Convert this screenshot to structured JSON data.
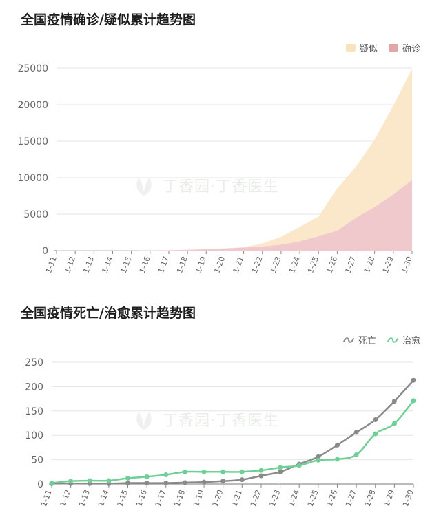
{
  "charts": [
    {
      "id": "panel1",
      "title": "全国疫情确诊/疑似累计趋势图",
      "watermark": "丁香园·丁香医生",
      "legend": [
        {
          "name": "疑似",
          "color": "#f9e3bd"
        },
        {
          "name": "确诊",
          "color": "#e3a6a6"
        }
      ]
    },
    {
      "id": "panel2",
      "title": "全国疫情死亡/治愈累计趋势图",
      "watermark": "丁香园·丁香医生",
      "legend": [
        {
          "name": "死亡",
          "color": "#8a8a8a"
        },
        {
          "name": "治愈",
          "color": "#6fcf97"
        }
      ]
    }
  ],
  "chart_data": [
    {
      "type": "area",
      "stacked": true,
      "title": "全国疫情确诊/疑似累计趋势图",
      "categories": [
        "1-11",
        "1-12",
        "1-13",
        "1-14",
        "1-15",
        "1-16",
        "1-17",
        "1-18",
        "1-19",
        "1-20",
        "1-21",
        "1-22",
        "1-23",
        "1-24",
        "1-25",
        "1-26",
        "1-27",
        "1-28",
        "1-29",
        "1-30"
      ],
      "series": [
        {
          "name": "确诊",
          "color": "#f0c9cd",
          "values": [
            41,
            41,
            41,
            41,
            41,
            45,
            62,
            121,
            198,
            291,
            440,
            571,
            830,
            1287,
            1975,
            2744,
            4515,
            5974,
            7711,
            9692
          ]
        },
        {
          "name": "疑似",
          "color": "#fbe8cb",
          "values": [
            0,
            0,
            0,
            0,
            0,
            0,
            0,
            0,
            0,
            54,
            37,
            393,
            1072,
            1965,
            2684,
            5794,
            6973,
            9239,
            12167,
            15238
          ]
        }
      ],
      "ylim": [
        0,
        25000
      ],
      "yticks": [
        0,
        5000,
        10000,
        15000,
        20000,
        25000
      ],
      "grid": true,
      "legend_position": "top-right"
    },
    {
      "type": "line",
      "title": "全国疫情死亡/治愈累计趋势图",
      "categories": [
        "1-11",
        "1-12",
        "1-13",
        "1-14",
        "1-15",
        "1-16",
        "1-17",
        "1-18",
        "1-19",
        "1-20",
        "1-21",
        "1-22",
        "1-23",
        "1-24",
        "1-25",
        "1-26",
        "1-27",
        "1-28",
        "1-29",
        "1-30"
      ],
      "series": [
        {
          "name": "死亡",
          "color": "#8a8a8a",
          "values": [
            1,
            1,
            1,
            1,
            2,
            2,
            2,
            3,
            4,
            6,
            9,
            17,
            25,
            41,
            56,
            80,
            106,
            132,
            170,
            213
          ]
        },
        {
          "name": "治愈",
          "color": "#6fcf97",
          "values": [
            2,
            6,
            7,
            7,
            12,
            15,
            19,
            25,
            25,
            25,
            25,
            28,
            34,
            38,
            49,
            51,
            60,
            103,
            124,
            171
          ]
        }
      ],
      "ylim": [
        0,
        250
      ],
      "yticks": [
        0,
        50,
        100,
        150,
        200,
        250
      ],
      "grid": true,
      "legend_position": "top-right"
    }
  ]
}
